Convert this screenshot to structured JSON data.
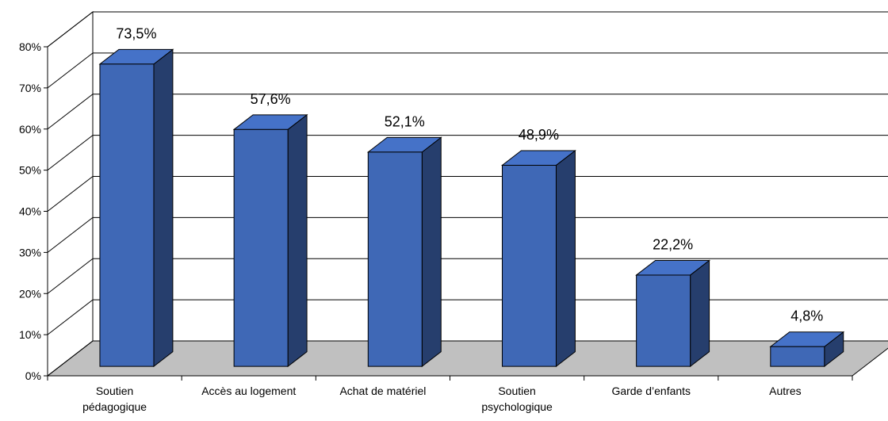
{
  "chart_data": {
    "type": "bar3d",
    "categories": [
      "Soutien pédagogique",
      "Accès au logement",
      "Achat de matériel",
      "Soutien psychologique",
      "Garde d’enfants",
      "Autres"
    ],
    "values": [
      73.5,
      57.6,
      52.1,
      48.9,
      22.2,
      4.8
    ],
    "value_labels": [
      "73,5%",
      "57,6%",
      "52,1%",
      "48,9%",
      "22,2%",
      "4,8%"
    ],
    "color": "#3f68b6",
    "ylim": [
      0,
      80
    ],
    "yticks": [
      {
        "value": 0,
        "label": "0%"
      },
      {
        "value": 10,
        "label": "10%"
      },
      {
        "value": 20,
        "label": "20%"
      },
      {
        "value": 30,
        "label": "30%"
      },
      {
        "value": 40,
        "label": "40%"
      },
      {
        "value": 50,
        "label": "50%"
      },
      {
        "value": 60,
        "label": "60%"
      },
      {
        "value": 70,
        "label": "70%"
      },
      {
        "value": 80,
        "label": "80%"
      }
    ],
    "grid": true
  }
}
